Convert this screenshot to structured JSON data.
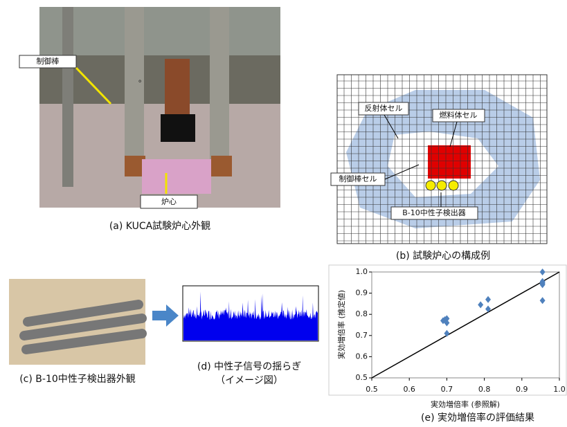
{
  "panel_a": {
    "caption": "(a) KUCA試験炉心外観",
    "label_rod": "制御棒",
    "label_core": "炉心",
    "mark": "。"
  },
  "panel_b": {
    "caption": "(b) 試験炉心の構成例",
    "label_reflector": "反射体セル",
    "label_fuel": "燃料体セル",
    "label_rod": "制御棒セル",
    "label_detector": "B-10中性子検出器"
  },
  "panel_c": {
    "caption": "(c) B-10中性子検出器外観"
  },
  "panel_d": {
    "caption": [
      "(d) 中性子信号の揺らぎ",
      "（イメージ図）"
    ]
  },
  "chart_data": {
    "type": "scatter",
    "caption": "(e) 実効増倍率の評価結果",
    "x_label": "実効増倍率 (参照解)",
    "y_label": "実効増倍率 (推定値)",
    "color": "#4f81bd",
    "x": [
      0.69,
      0.695,
      0.7,
      0.7,
      0.7,
      0.79,
      0.81,
      0.81,
      0.955,
      0.955,
      0.955,
      0.955,
      0.955,
      0.955
    ],
    "values": [
      0.77,
      0.775,
      0.78,
      0.76,
      0.71,
      0.845,
      0.87,
      0.825,
      1.0,
      0.955,
      0.95,
      0.94,
      0.945,
      0.865
    ],
    "xlim": [
      0.5,
      1.0
    ],
    "ylim": [
      0.5,
      1.0
    ],
    "xticks": [
      0.5,
      0.6,
      0.7,
      0.8,
      0.9,
      {
        "value": 1,
        "label": "1.0"
      }
    ],
    "yticks": [
      0.5,
      0.6,
      0.7,
      0.8,
      0.9,
      {
        "value": 1,
        "label": "1.0"
      }
    ]
  }
}
